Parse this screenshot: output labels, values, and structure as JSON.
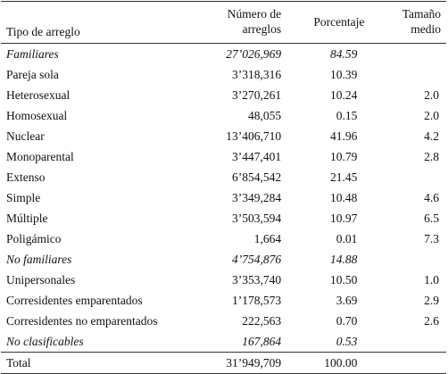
{
  "headers": {
    "tipo": "Tipo de arreglo",
    "numero_line1": "Número de",
    "numero_line2": "arreglos",
    "porcentaje": "Porcentaje",
    "tamano_line1": "Tamaño",
    "tamano_line2": "medio"
  },
  "rows": [
    {
      "tipo": "Familiares",
      "numero": "27’026,969",
      "porcentaje": "84.59",
      "tamano": "",
      "italic": true
    },
    {
      "tipo": "Pareja sola",
      "numero": "3’318,316",
      "porcentaje": "10.39",
      "tamano": "",
      "italic": false
    },
    {
      "tipo": "Heterosexual",
      "numero": "3’270,261",
      "porcentaje": "10.24",
      "tamano": "2.0",
      "italic": false
    },
    {
      "tipo": "Homosexual",
      "numero": "48,055",
      "porcentaje": "0.15",
      "tamano": "2.0",
      "italic": false
    },
    {
      "tipo": "Nuclear",
      "numero": "13’406,710",
      "porcentaje": "41.96",
      "tamano": "4.2",
      "italic": false
    },
    {
      "tipo": "Monoparental",
      "numero": "3’447,401",
      "porcentaje": "10.79",
      "tamano": "2.8",
      "italic": false
    },
    {
      "tipo": "Extenso",
      "numero": "6’854,542",
      "porcentaje": "21.45",
      "tamano": "",
      "italic": false
    },
    {
      "tipo": "Simple",
      "numero": "3’349,284",
      "porcentaje": "10.48",
      "tamano": "4.6",
      "italic": false
    },
    {
      "tipo": "Múltiple",
      "numero": "3’503,594",
      "porcentaje": "10.97",
      "tamano": "6.5",
      "italic": false
    },
    {
      "tipo": "Poligámico",
      "numero": "1,664",
      "porcentaje": "0.01",
      "tamano": "7.3",
      "italic": false
    },
    {
      "tipo": "No familiares",
      "numero": "4’754,876",
      "porcentaje": "14.88",
      "tamano": "",
      "italic": true
    },
    {
      "tipo": "Unipersonales",
      "numero": "3’353,740",
      "porcentaje": "10.50",
      "tamano": "1.0",
      "italic": false
    },
    {
      "tipo": "Corresidentes emparentados",
      "numero": "1’178,573",
      "porcentaje": "3.69",
      "tamano": "2.9",
      "italic": false
    },
    {
      "tipo": "Corresidentes no emparentados",
      "numero": "222,563",
      "porcentaje": "0.70",
      "tamano": "2.6",
      "italic": false
    },
    {
      "tipo": "No clasificables",
      "numero": "167,864",
      "porcentaje": "0.53",
      "tamano": "",
      "italic": true
    },
    {
      "tipo": "Total",
      "numero": "31’949,709",
      "porcentaje": "100.00",
      "tamano": "",
      "italic": false,
      "total": true
    }
  ]
}
